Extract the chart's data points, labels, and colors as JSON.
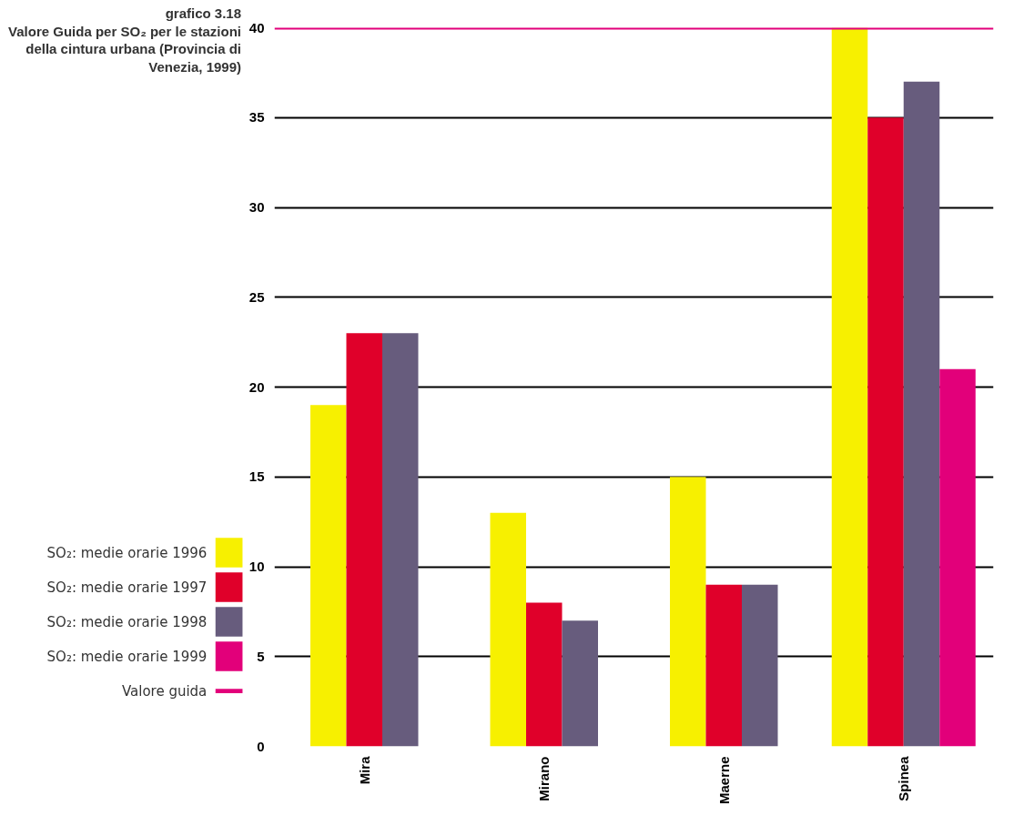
{
  "chart_data": {
    "type": "bar",
    "title": "grafico 3.18",
    "subtitle": "Valore Guida per SO₂ per le stazioni della cintura urbana (Provincia di Venezia, 1999)",
    "categories": [
      "Mira",
      "Mirano",
      "Maerne",
      "Spinea"
    ],
    "series": [
      {
        "name": "SO₂: medie orarie 1996",
        "color": "#f7f000",
        "values": [
          19,
          13,
          15,
          40
        ]
      },
      {
        "name": "SO₂: medie orarie 1997",
        "color": "#e0002a",
        "values": [
          23,
          8,
          9,
          35
        ]
      },
      {
        "name": "SO₂: medie orarie 1998",
        "color": "#675c7d",
        "values": [
          23,
          7,
          9,
          37
        ]
      },
      {
        "name": "SO₂: medie orarie 1999",
        "color": "#e2007a",
        "values": [
          null,
          null,
          null,
          21
        ]
      }
    ],
    "ref_lines": [
      {
        "axis": "y",
        "value": 40,
        "label": "Valore guida",
        "color": "#e2007a"
      }
    ],
    "ylim": [
      0,
      40
    ],
    "yticks": [
      0,
      5,
      10,
      15,
      20,
      25,
      30,
      35,
      40
    ],
    "grid": "y",
    "legend": "bottom left"
  }
}
